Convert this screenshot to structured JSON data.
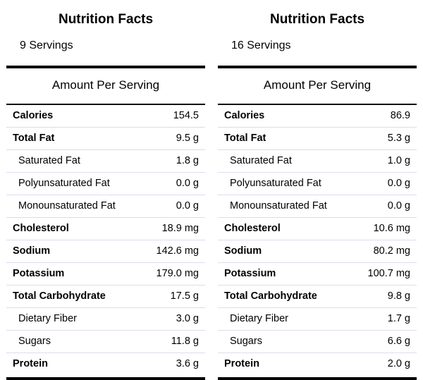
{
  "panels": [
    {
      "title": "Nutrition Facts",
      "servings": "9 Servings",
      "amount_per_serving": "Amount Per Serving",
      "rows": [
        {
          "label": "Calories",
          "value": "154.5",
          "bold": true,
          "indent": false
        },
        {
          "label": "Total Fat",
          "value": "9.5 g",
          "bold": true,
          "indent": false
        },
        {
          "label": "Saturated Fat",
          "value": "1.8 g",
          "bold": false,
          "indent": true
        },
        {
          "label": "Polyunsaturated Fat",
          "value": "0.0 g",
          "bold": false,
          "indent": true
        },
        {
          "label": "Monounsaturated Fat",
          "value": "0.0 g",
          "bold": false,
          "indent": true
        },
        {
          "label": "Cholesterol",
          "value": "18.9 mg",
          "bold": true,
          "indent": false
        },
        {
          "label": "Sodium",
          "value": "142.6 mg",
          "bold": true,
          "indent": false
        },
        {
          "label": "Potassium",
          "value": "179.0 mg",
          "bold": true,
          "indent": false
        },
        {
          "label": "Total Carbohydrate",
          "value": "17.5 g",
          "bold": true,
          "indent": false
        },
        {
          "label": "Dietary Fiber",
          "value": "3.0 g",
          "bold": false,
          "indent": true
        },
        {
          "label": "Sugars",
          "value": "11.8 g",
          "bold": false,
          "indent": true
        },
        {
          "label": "Protein",
          "value": "3.6 g",
          "bold": true,
          "indent": false
        }
      ]
    },
    {
      "title": "Nutrition Facts",
      "servings": "16 Servings",
      "amount_per_serving": "Amount Per Serving",
      "rows": [
        {
          "label": "Calories",
          "value": "86.9",
          "bold": true,
          "indent": false
        },
        {
          "label": "Total Fat",
          "value": "5.3 g",
          "bold": true,
          "indent": false
        },
        {
          "label": "Saturated Fat",
          "value": "1.0 g",
          "bold": false,
          "indent": true
        },
        {
          "label": "Polyunsaturated Fat",
          "value": "0.0 g",
          "bold": false,
          "indent": true
        },
        {
          "label": "Monounsaturated Fat",
          "value": "0.0 g",
          "bold": false,
          "indent": true
        },
        {
          "label": "Cholesterol",
          "value": "10.6 mg",
          "bold": true,
          "indent": false
        },
        {
          "label": "Sodium",
          "value": "80.2 mg",
          "bold": true,
          "indent": false
        },
        {
          "label": "Potassium",
          "value": "100.7 mg",
          "bold": true,
          "indent": false
        },
        {
          "label": "Total Carbohydrate",
          "value": "9.8 g",
          "bold": true,
          "indent": false
        },
        {
          "label": "Dietary Fiber",
          "value": "1.7 g",
          "bold": false,
          "indent": true
        },
        {
          "label": "Sugars",
          "value": "6.6 g",
          "bold": false,
          "indent": true
        },
        {
          "label": "Protein",
          "value": "2.0 g",
          "bold": true,
          "indent": false
        }
      ]
    }
  ]
}
